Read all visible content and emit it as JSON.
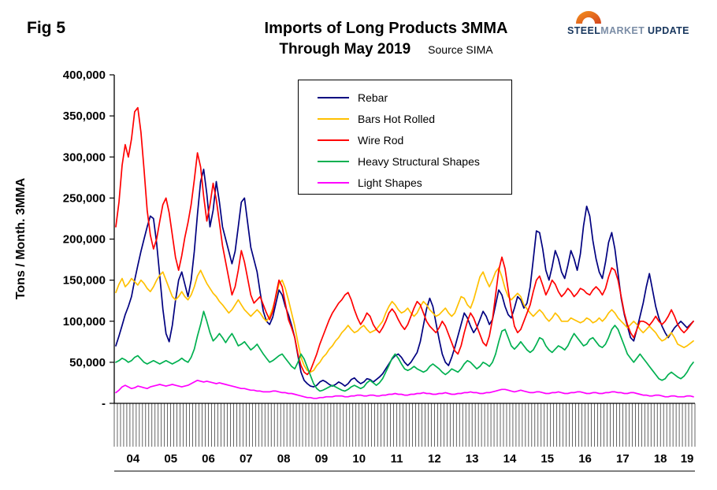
{
  "fig_label": "Fig 5",
  "title": {
    "line1": "Imports of Long Products 3MMA",
    "line2": "Through May 2019",
    "source": "Source SIMA"
  },
  "logo": {
    "word1": "STEEL",
    "word2": "MARKET",
    "word3": "UPDATE",
    "arc_color": "#e87722"
  },
  "chart_data": {
    "type": "line",
    "title": "Imports of Long Products 3MMA Through May 2019",
    "ylabel": "Tons / Month. 3MMA",
    "ylim": [
      0,
      400000
    ],
    "ytick_step": 50000,
    "ytick_labels": [
      "400,000",
      "350,000",
      "300,000",
      "250,000",
      "200,000",
      "150,000",
      "100,000",
      "50,000",
      "-"
    ],
    "grid": false,
    "legend_position": "top-center",
    "x_unit": "month",
    "x_start": "2004-01",
    "x_end": "2019-05",
    "x_year_labels": [
      "04",
      "05",
      "06",
      "07",
      "08",
      "09",
      "10",
      "11",
      "12",
      "13",
      "14",
      "15",
      "16",
      "17",
      "18",
      "19"
    ],
    "series": [
      {
        "name": "Rebar",
        "color": "#000080",
        "values": [
          70000,
          82000,
          95000,
          108000,
          118000,
          130000,
          150000,
          168000,
          185000,
          200000,
          215000,
          228000,
          225000,
          195000,
          155000,
          115000,
          85000,
          75000,
          95000,
          125000,
          150000,
          160000,
          145000,
          130000,
          150000,
          185000,
          230000,
          270000,
          285000,
          255000,
          215000,
          235000,
          270000,
          245000,
          215000,
          200000,
          185000,
          170000,
          185000,
          215000,
          245000,
          250000,
          220000,
          190000,
          175000,
          160000,
          135000,
          112000,
          100000,
          96000,
          105000,
          122000,
          138000,
          132000,
          118000,
          108000,
          95000,
          80000,
          58000,
          38000,
          28000,
          24000,
          21000,
          20000,
          22000,
          26000,
          28000,
          26000,
          23000,
          21000,
          23000,
          26000,
          24000,
          21000,
          24000,
          29000,
          31000,
          27000,
          24000,
          26000,
          30000,
          29000,
          26000,
          29000,
          32000,
          36000,
          42000,
          48000,
          54000,
          58000,
          60000,
          56000,
          50000,
          46000,
          50000,
          56000,
          62000,
          75000,
          95000,
          115000,
          128000,
          118000,
          98000,
          78000,
          60000,
          50000,
          46000,
          56000,
          68000,
          82000,
          96000,
          110000,
          104000,
          94000,
          86000,
          92000,
          102000,
          112000,
          106000,
          96000,
          102000,
          120000,
          138000,
          132000,
          118000,
          108000,
          104000,
          116000,
          130000,
          126000,
          116000,
          122000,
          142000,
          175000,
          210000,
          208000,
          188000,
          162000,
          150000,
          166000,
          186000,
          176000,
          160000,
          152000,
          168000,
          186000,
          176000,
          162000,
          182000,
          216000,
          240000,
          228000,
          198000,
          176000,
          160000,
          152000,
          172000,
          196000,
          208000,
          188000,
          158000,
          128000,
          108000,
          94000,
          80000,
          76000,
          90000,
          106000,
          122000,
          142000,
          158000,
          138000,
          118000,
          104000,
          94000,
          86000,
          80000,
          86000,
          92000,
          96000,
          100000,
          96000,
          92000,
          96000,
          100000
        ]
      },
      {
        "name": "Bars Hot Rolled",
        "color": "#ffc000",
        "values": [
          135000,
          145000,
          152000,
          142000,
          146000,
          152000,
          148000,
          144000,
          150000,
          146000,
          140000,
          136000,
          142000,
          150000,
          156000,
          160000,
          150000,
          140000,
          130000,
          126000,
          130000,
          136000,
          130000,
          126000,
          132000,
          142000,
          155000,
          162000,
          154000,
          146000,
          140000,
          134000,
          130000,
          124000,
          120000,
          115000,
          110000,
          114000,
          120000,
          126000,
          120000,
          114000,
          110000,
          106000,
          110000,
          114000,
          110000,
          104000,
          100000,
          106000,
          116000,
          130000,
          145000,
          150000,
          140000,
          126000,
          110000,
          94000,
          74000,
          56000,
          46000,
          40000,
          38000,
          40000,
          46000,
          50000,
          56000,
          60000,
          66000,
          70000,
          76000,
          80000,
          86000,
          90000,
          95000,
          90000,
          86000,
          88000,
          92000,
          95000,
          90000,
          86000,
          88000,
          90000,
          95000,
          100000,
          110000,
          118000,
          124000,
          120000,
          114000,
          110000,
          112000,
          116000,
          110000,
          106000,
          110000,
          118000,
          124000,
          120000,
          114000,
          110000,
          106000,
          108000,
          112000,
          116000,
          110000,
          106000,
          110000,
          120000,
          130000,
          128000,
          120000,
          116000,
          126000,
          140000,
          154000,
          160000,
          150000,
          142000,
          150000,
          160000,
          165000,
          154000,
          140000,
          130000,
          126000,
          130000,
          134000,
          130000,
          120000,
          115000,
          110000,
          106000,
          110000,
          114000,
          110000,
          104000,
          100000,
          104000,
          110000,
          106000,
          100000,
          100000,
          100000,
          104000,
          102000,
          100000,
          98000,
          100000,
          104000,
          102000,
          98000,
          100000,
          104000,
          100000,
          104000,
          110000,
          114000,
          110000,
          104000,
          100000,
          96000,
          92000,
          96000,
          100000,
          96000,
          90000,
          86000,
          90000,
          94000,
          90000,
          86000,
          80000,
          76000,
          78000,
          82000,
          86000,
          80000,
          72000,
          70000,
          68000,
          70000,
          73000,
          76000
        ]
      },
      {
        "name": "Wire Rod",
        "color": "#ff0000",
        "values": [
          215000,
          245000,
          290000,
          315000,
          300000,
          322000,
          355000,
          360000,
          330000,
          285000,
          235000,
          205000,
          188000,
          200000,
          222000,
          242000,
          250000,
          232000,
          205000,
          178000,
          162000,
          180000,
          202000,
          220000,
          242000,
          272000,
          305000,
          288000,
          252000,
          222000,
          242000,
          268000,
          248000,
          220000,
          192000,
          172000,
          152000,
          132000,
          142000,
          162000,
          186000,
          172000,
          152000,
          132000,
          122000,
          126000,
          130000,
          120000,
          110000,
          102000,
          112000,
          132000,
          150000,
          142000,
          122000,
          102000,
          92000,
          80000,
          60000,
          46000,
          38000,
          35000,
          40000,
          50000,
          60000,
          72000,
          82000,
          92000,
          102000,
          110000,
          116000,
          122000,
          126000,
          132000,
          135000,
          126000,
          114000,
          104000,
          96000,
          102000,
          110000,
          106000,
          96000,
          90000,
          86000,
          92000,
          100000,
          110000,
          115000,
          110000,
          102000,
          95000,
          90000,
          96000,
          106000,
          116000,
          124000,
          120000,
          110000,
          100000,
          94000,
          90000,
          86000,
          92000,
          100000,
          94000,
          84000,
          74000,
          64000,
          60000,
          70000,
          86000,
          100000,
          110000,
          104000,
          94000,
          84000,
          74000,
          70000,
          82000,
          102000,
          132000,
          162000,
          178000,
          164000,
          138000,
          114000,
          94000,
          86000,
          90000,
          100000,
          110000,
          120000,
          136000,
          150000,
          155000,
          144000,
          132000,
          140000,
          150000,
          145000,
          136000,
          130000,
          134000,
          140000,
          136000,
          130000,
          134000,
          140000,
          138000,
          134000,
          132000,
          138000,
          142000,
          138000,
          132000,
          140000,
          154000,
          165000,
          162000,
          150000,
          130000,
          110000,
          96000,
          86000,
          80000,
          90000,
          100000,
          100000,
          98000,
          95000,
          100000,
          106000,
          100000,
          96000,
          100000,
          106000,
          114000,
          106000,
          96000,
          90000,
          86000,
          90000,
          95000,
          100000
        ]
      },
      {
        "name": "Heavy Structural Shapes",
        "color": "#00b050",
        "values": [
          50000,
          52000,
          55000,
          53000,
          50000,
          52000,
          56000,
          58000,
          54000,
          50000,
          48000,
          50000,
          52000,
          50000,
          48000,
          50000,
          52000,
          50000,
          48000,
          50000,
          52000,
          55000,
          52000,
          50000,
          56000,
          66000,
          82000,
          96000,
          112000,
          100000,
          86000,
          76000,
          80000,
          85000,
          80000,
          74000,
          80000,
          85000,
          78000,
          70000,
          72000,
          75000,
          70000,
          65000,
          68000,
          72000,
          66000,
          60000,
          55000,
          50000,
          52000,
          55000,
          58000,
          60000,
          55000,
          50000,
          45000,
          42000,
          50000,
          60000,
          54000,
          44000,
          34000,
          24000,
          18000,
          15000,
          16000,
          18000,
          20000,
          22000,
          20000,
          18000,
          16000,
          15000,
          17000,
          20000,
          22000,
          20000,
          18000,
          20000,
          25000,
          28000,
          25000,
          22000,
          25000,
          30000,
          38000,
          46000,
          55000,
          60000,
          55000,
          48000,
          42000,
          40000,
          42000,
          45000,
          42000,
          40000,
          38000,
          40000,
          45000,
          48000,
          45000,
          42000,
          38000,
          35000,
          38000,
          42000,
          40000,
          38000,
          42000,
          48000,
          52000,
          50000,
          46000,
          42000,
          45000,
          50000,
          48000,
          45000,
          50000,
          60000,
          75000,
          88000,
          90000,
          80000,
          70000,
          66000,
          70000,
          75000,
          70000,
          65000,
          62000,
          65000,
          72000,
          80000,
          78000,
          70000,
          65000,
          62000,
          66000,
          70000,
          68000,
          65000,
          70000,
          78000,
          85000,
          80000,
          75000,
          70000,
          72000,
          78000,
          80000,
          75000,
          70000,
          68000,
          72000,
          80000,
          90000,
          95000,
          90000,
          80000,
          70000,
          60000,
          55000,
          50000,
          55000,
          60000,
          55000,
          50000,
          45000,
          40000,
          35000,
          30000,
          28000,
          30000,
          35000,
          38000,
          35000,
          32000,
          30000,
          33000,
          38000,
          45000,
          50000
        ]
      },
      {
        "name": "Light Shapes",
        "color": "#ff00ff",
        "values": [
          13000,
          16000,
          20000,
          22000,
          20000,
          18000,
          19000,
          21000,
          20000,
          19000,
          18000,
          20000,
          21000,
          22000,
          23000,
          22000,
          21000,
          22000,
          23000,
          22000,
          21000,
          20000,
          21000,
          22000,
          24000,
          26000,
          28000,
          27000,
          26000,
          27000,
          26000,
          25000,
          24000,
          25000,
          24000,
          23000,
          22000,
          21000,
          20000,
          19000,
          18000,
          18000,
          17000,
          16000,
          16000,
          15000,
          15000,
          14000,
          14000,
          14000,
          15000,
          15000,
          14000,
          13000,
          13000,
          12000,
          12000,
          11000,
          10000,
          9000,
          8000,
          7000,
          7000,
          6000,
          6000,
          7000,
          7000,
          8000,
          8000,
          8000,
          9000,
          9000,
          9000,
          8000,
          8000,
          9000,
          9000,
          10000,
          10000,
          9000,
          9000,
          10000,
          10000,
          9000,
          9000,
          10000,
          10000,
          11000,
          11000,
          12000,
          11000,
          11000,
          10000,
          10000,
          11000,
          11000,
          12000,
          12000,
          13000,
          12000,
          12000,
          11000,
          11000,
          12000,
          12000,
          13000,
          12000,
          11000,
          11000,
          12000,
          12000,
          13000,
          13000,
          14000,
          13000,
          13000,
          12000,
          12000,
          13000,
          13000,
          14000,
          15000,
          16000,
          17000,
          17000,
          16000,
          15000,
          14000,
          15000,
          16000,
          15000,
          14000,
          13000,
          13000,
          14000,
          14000,
          13000,
          12000,
          12000,
          13000,
          13000,
          14000,
          13000,
          12000,
          12000,
          13000,
          13000,
          14000,
          14000,
          13000,
          12000,
          12000,
          13000,
          13000,
          12000,
          12000,
          13000,
          13000,
          14000,
          14000,
          13000,
          13000,
          12000,
          12000,
          13000,
          13000,
          12000,
          11000,
          10000,
          10000,
          9000,
          9000,
          10000,
          10000,
          9000,
          8000,
          8000,
          9000,
          9000,
          8000,
          8000,
          8000,
          9000,
          9000,
          8000
        ]
      }
    ]
  }
}
